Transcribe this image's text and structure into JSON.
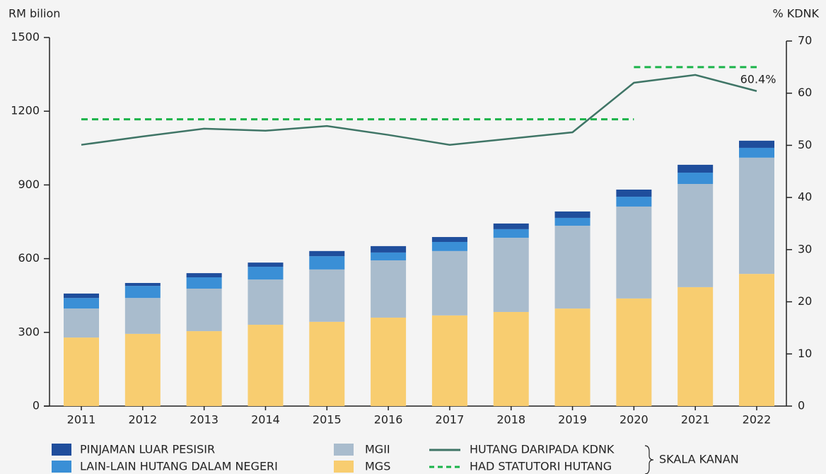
{
  "chart_data": {
    "type": "bar",
    "y_label": "RM bilion",
    "y2_label": "% KDNK",
    "categories": [
      "2011",
      "2012",
      "2013",
      "2014",
      "2015",
      "2016",
      "2017",
      "2018",
      "2019",
      "2020",
      "2021",
      "2022"
    ],
    "series": [
      {
        "name": "MGS",
        "color": "#f8cd70",
        "values": [
          279,
          294,
          305,
          331,
          343,
          360,
          369,
          383,
          397,
          438,
          484,
          538
        ]
      },
      {
        "name": "MGII",
        "color": "#a9bccd",
        "values": [
          118,
          146,
          173,
          184,
          213,
          233,
          262,
          302,
          337,
          374,
          420,
          473
        ]
      },
      {
        "name": "LAIN-LAIN HUTANG DALAM NEGERI",
        "color": "#3a8fd6",
        "values": [
          43,
          49,
          46,
          52,
          54,
          32,
          37,
          35,
          32,
          40,
          46,
          40
        ]
      },
      {
        "name": "PINJAMAN LUAR PESISIR",
        "color": "#1f4e9c",
        "values": [
          18,
          12,
          17,
          17,
          21,
          26,
          20,
          23,
          26,
          29,
          32,
          29
        ]
      },
      {
        "name": "HUTANG DARIPADA KDNK",
        "type": "line",
        "axis": "y2",
        "color": "#3f7566",
        "values": [
          50.1,
          51.7,
          53.2,
          52.8,
          53.7,
          52.0,
          50.1,
          51.3,
          52.5,
          62.0,
          63.5,
          60.4
        ]
      },
      {
        "name": "HAD STATUTORI HUTANG",
        "type": "line",
        "axis": "y2",
        "dashed": true,
        "color": "#1bb34a",
        "values": [
          55,
          55,
          55,
          55,
          55,
          55,
          55,
          55,
          55,
          65,
          65,
          65
        ]
      }
    ],
    "annotation": "60.4%",
    "right_scale_label": "SKALA KANAN",
    "ylim": [
      0,
      1500
    ],
    "yticks": [
      0,
      300,
      600,
      900,
      1200,
      1500
    ],
    "y2lim": [
      0,
      70
    ],
    "y2ticks": [
      0,
      10,
      20,
      30,
      40,
      50,
      60,
      70
    ]
  }
}
